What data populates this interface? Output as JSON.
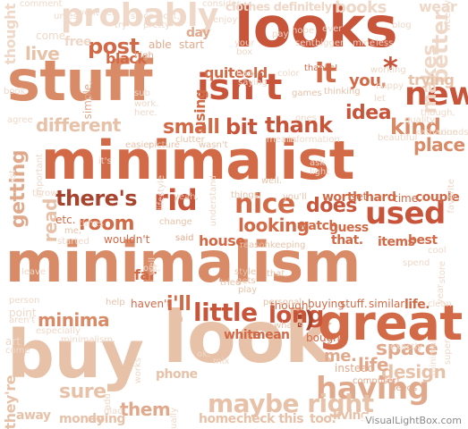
{
  "palette": {
    "c1": "#c8543a",
    "c2": "#d26a47",
    "c3": "#d98a66",
    "c4": "#e1a98c",
    "c5": "#e8c2a8",
    "c6": "#efd8c8",
    "c7": "#f3e6dc",
    "c8": "#a8452e"
  },
  "watermark": "VisualLightBox.com",
  "words": [
    {
      "text": "minimalism",
      "c": "c3"
    },
    {
      "text": "minimalist",
      "c": "c2"
    },
    {
      "text": "looks",
      "c": "c1"
    },
    {
      "text": "stuff",
      "c": "c3"
    },
    {
      "text": "buy",
      "c": "c5"
    },
    {
      "text": "look",
      "c": "c5"
    },
    {
      "text": "probably",
      "c": "c6"
    },
    {
      "text": "great",
      "c": "c2"
    },
    {
      "text": "isn't",
      "c": "c1"
    },
    {
      "text": "new",
      "c": "c1"
    },
    {
      "text": "it",
      "c": "c2"
    },
    {
      "text": "having",
      "c": "c4"
    },
    {
      "text": "maybe right",
      "c": "c5"
    },
    {
      "text": "there's",
      "c": "c8"
    },
    {
      "text": "rid",
      "c": "c1"
    },
    {
      "text": "nice",
      "c": "c2"
    },
    {
      "text": "does",
      "c": "c1"
    },
    {
      "text": "used",
      "c": "c1"
    },
    {
      "text": "little",
      "c": "c1"
    },
    {
      "text": "minima",
      "c": "c3"
    },
    {
      "text": "i'll",
      "c": "c2"
    },
    {
      "text": "long",
      "c": "c1"
    },
    {
      "text": ":)",
      "c": "c8"
    },
    {
      "text": "post",
      "c": "c2"
    },
    {
      "text": "books",
      "c": "c6"
    },
    {
      "text": "better",
      "c": "c6"
    },
    {
      "text": "*",
      "c": "c1"
    },
    {
      "text": "you,",
      "c": "c2"
    },
    {
      "text": "kind",
      "c": "c3"
    },
    {
      "text": "place",
      "c": "c3"
    },
    {
      "text": "thank",
      "c": "c1"
    },
    {
      "text": "bit",
      "c": "c1"
    },
    {
      "text": "small",
      "c": "c2"
    },
    {
      "text": "idea",
      "c": "c1"
    },
    {
      "text": "room",
      "c": "c2"
    },
    {
      "text": "looking",
      "c": "c2"
    },
    {
      "text": "getting",
      "c": "c4"
    },
    {
      "text": "different",
      "c": "c5"
    },
    {
      "text": "space",
      "c": "c4"
    },
    {
      "text": "design",
      "c": "c5"
    },
    {
      "text": "life",
      "c": "c4"
    },
    {
      "text": "me.",
      "c": "c4"
    },
    {
      "text": "them",
      "c": "c4"
    },
    {
      "text": "sure",
      "c": "c5"
    },
    {
      "text": "live",
      "c": "c5"
    },
    {
      "text": "thought",
      "c": "c6"
    },
    {
      "text": "makes",
      "c": "c6"
    },
    {
      "text": "read",
      "c": "c5"
    },
    {
      "text": "quiteold",
      "c": "c2"
    },
    {
      "text": "house",
      "c": "c2"
    },
    {
      "text": "clothes definitely",
      "c": "c6"
    },
    {
      "text": "black",
      "c": "c2"
    },
    {
      "text": "using",
      "c": "c2"
    },
    {
      "text": "trying",
      "c": "c5"
    },
    {
      "text": "they're",
      "c": "c5"
    },
    {
      "text": "white",
      "c": "c2"
    },
    {
      "text": "mean",
      "c": "c2"
    },
    {
      "text": "bought",
      "c": "c2"
    },
    {
      "text": "phone",
      "c": "c5"
    },
    {
      "text": "doing",
      "c": "c5"
    },
    {
      "text": "money",
      "c": "c5"
    },
    {
      "text": "away",
      "c": "c5"
    },
    {
      "text": "check this",
      "c": "c5"
    },
    {
      "text": "too.",
      "c": "c5"
    },
    {
      "text": "living",
      "c": "c5"
    },
    {
      "text": "home",
      "c": "c5"
    },
    {
      "text": "haven't",
      "c": "c2"
    },
    {
      "text": "far",
      "c": "c2"
    },
    {
      "text": "etc.",
      "c": "c2"
    },
    {
      "text": "wouldn't",
      "c": "c2"
    },
    {
      "text": "that.",
      "c": "c2"
    },
    {
      "text": "items",
      "c": "c2"
    },
    {
      "text": "best",
      "c": "c2"
    },
    {
      "text": "hard",
      "c": "c2"
    },
    {
      "text": "time.",
      "c": "c2"
    },
    {
      "text": "couple",
      "c": "c2"
    },
    {
      "text": "watch",
      "c": "c2"
    },
    {
      "text": "guess",
      "c": "c2"
    },
    {
      "text": "thanks!",
      "c": "c2"
    },
    {
      "text": "buying",
      "c": "c2"
    },
    {
      "text": "stuff.",
      "c": "c2"
    },
    {
      "text": "similar",
      "c": "c2"
    },
    {
      "text": "life.",
      "c": "c2"
    },
    {
      "text": "though.",
      "c": "c2"
    },
    {
      "text": "instead",
      "c": "c4"
    },
    {
      "text": "sort",
      "c": "c4"
    },
    {
      "text": "needs",
      "c": "c4"
    },
    {
      "text": "computer",
      "c": "c4"
    },
    {
      "text": "wear",
      "c": "c6"
    },
    {
      "text": "weekly",
      "c": "c6"
    },
    {
      "text": "simple,",
      "c": "c4"
    },
    {
      "text": "comment",
      "c": "c6"
    },
    {
      "text": "come",
      "c": "c6"
    },
    {
      "text": "free",
      "c": "c6"
    },
    {
      "text": "day",
      "c": "c4"
    },
    {
      "text": "start",
      "c": "c4"
    },
    {
      "text": "able",
      "c": "c4"
    },
    {
      "text": "high",
      "c": "c4"
    },
    {
      "text": "enjoy",
      "c": "c6"
    },
    {
      "text": "consider",
      "c": "c6"
    },
    {
      "text": "blog",
      "c": "c6"
    },
    {
      "text": "book",
      "c": "c6"
    },
    {
      "text": "agree",
      "c": "c6"
    },
    {
      "text": "important",
      "c": "c6"
    },
    {
      "text": "easier",
      "c": "c5"
    },
    {
      "text": "picture",
      "c": "c5"
    },
    {
      "text": "clutter",
      "c": "c5"
    },
    {
      "text": "wasn't",
      "c": "c5"
    },
    {
      "text": "lifestyle",
      "c": "c6"
    },
    {
      "text": "understand",
      "c": "c6"
    },
    {
      "text": "yeah,",
      "c": "c5"
    },
    {
      "text": "things.",
      "c": "c5"
    },
    {
      "text": "well.",
      "c": "c5"
    },
    {
      "text": "you'll",
      "c": "c5"
    },
    {
      "text": "worth",
      "c": "c2"
    },
    {
      "text": "set",
      "c": "c2"
    },
    {
      "text": "said",
      "c": "c4"
    },
    {
      "text": "change",
      "c": "c5"
    },
    {
      "text": "started",
      "c": "c6"
    },
    {
      "text": "times",
      "c": "c6"
    },
    {
      "text": "me,",
      "c": "c5"
    },
    {
      "text": "style",
      "c": "c5"
    },
    {
      "text": "gets",
      "c": "c5"
    },
    {
      "text": "play",
      "c": "c5"
    },
    {
      "text": "tried",
      "c": "c5"
    },
    {
      "text": "that,",
      "c": "c5"
    },
    {
      "text": "well",
      "c": "c6"
    },
    {
      "text": "out,",
      "c": "c6"
    },
    {
      "text": "person",
      "c": "c6"
    },
    {
      "text": "point",
      "c": "c6"
    },
    {
      "text": "aren't",
      "c": "c6"
    },
    {
      "text": "art",
      "c": "c6"
    },
    {
      "text": "come",
      "c": "c6"
    },
    {
      "text": "especially",
      "c": "c6"
    },
    {
      "text": "minimalism.",
      "c": "c6"
    },
    {
      "text": "ok.",
      "c": "c6"
    },
    {
      "text": "help",
      "c": "c5"
    },
    {
      "text": "personal",
      "c": "c5"
    },
    {
      "text": "big",
      "c": "c5"
    },
    {
      "text": "what's",
      "c": "c5"
    },
    {
      "text": "clean",
      "c": "c6"
    },
    {
      "text": "year",
      "c": "c6"
    },
    {
      "text": "store",
      "c": "c6"
    },
    {
      "text": "though,",
      "c": "c6"
    },
    {
      "text": "quality",
      "c": "c6"
    },
    {
      "text": "katharine",
      "c": "c6"
    },
    {
      "text": "sounds",
      "c": "c6"
    },
    {
      "text": "beautiful",
      "c": "c6"
    },
    {
      "text": "means",
      "c": "c6"
    },
    {
      "text": "information",
      "c": "c6"
    },
    {
      "text": "thinking",
      "c": "c5"
    },
    {
      "text": "games",
      "c": "c5"
    },
    {
      "text": "working",
      "c": "c6"
    },
    {
      "text": "happy",
      "c": "c6"
    },
    {
      "text": "let",
      "c": "c6"
    },
    {
      "text": "color",
      "c": "c6"
    },
    {
      "text": "ones",
      "c": "c6"
    },
    {
      "text": "bad",
      "c": "c6"
    },
    {
      "text": "saying",
      "c": "c6"
    },
    {
      "text": "reasonkeeping",
      "c": "c5"
    },
    {
      "text": "ask",
      "c": "c6"
    },
    {
      "text": "light",
      "c": "c6"
    },
    {
      "text": "sub",
      "c": "c6"
    },
    {
      "text": "work.",
      "c": "c6"
    },
    {
      "text": "here.",
      "c": "c6"
    },
    {
      "text": "exactly",
      "c": "c6"
    },
    {
      "text": "works",
      "c": "c6"
    },
    {
      "text": "mix",
      "c": "c6"
    },
    {
      "text": "add",
      "c": "c6"
    },
    {
      "text": "usually",
      "c": "c6"
    },
    {
      "text": "glad",
      "c": "c6"
    },
    {
      "text": "your",
      "c": "c6"
    },
    {
      "text": "box",
      "c": "c6"
    },
    {
      "text": "sent",
      "c": "c6"
    },
    {
      "text": "bigger",
      "c": "c6"
    },
    {
      "text": "mine",
      "c": "c6"
    },
    {
      "text": "less",
      "c": "c6"
    },
    {
      "text": "minimal",
      "c": "c6"
    },
    {
      "text": "super",
      "c": "c6"
    },
    {
      "text": "favorite",
      "c": "c6"
    },
    {
      "text": "throw",
      "c": "c6"
    },
    {
      "text": "went",
      "c": "c6"
    },
    {
      "text": "left",
      "c": "c6"
    },
    {
      "text": "unless",
      "c": "c6"
    },
    {
      "text": "since",
      "c": "c6"
    },
    {
      "text": "pretty",
      "c": "c6"
    },
    {
      "text": "post,",
      "c": "c6"
    },
    {
      "text": "it's",
      "c": "c6"
    },
    {
      "text": "pay",
      "c": "c6"
    },
    {
      "text": "hope",
      "c": "c6"
    },
    {
      "text": "ever",
      "c": "c6"
    },
    {
      "text": "try",
      "c": "c6"
    },
    {
      "text": "list",
      "c": "c6"
    },
    {
      "text": "leave",
      "c": "c6"
    },
    {
      "text": "spend",
      "c": "c6"
    },
    {
      "text": "cool",
      "c": "c6"
    }
  ]
}
